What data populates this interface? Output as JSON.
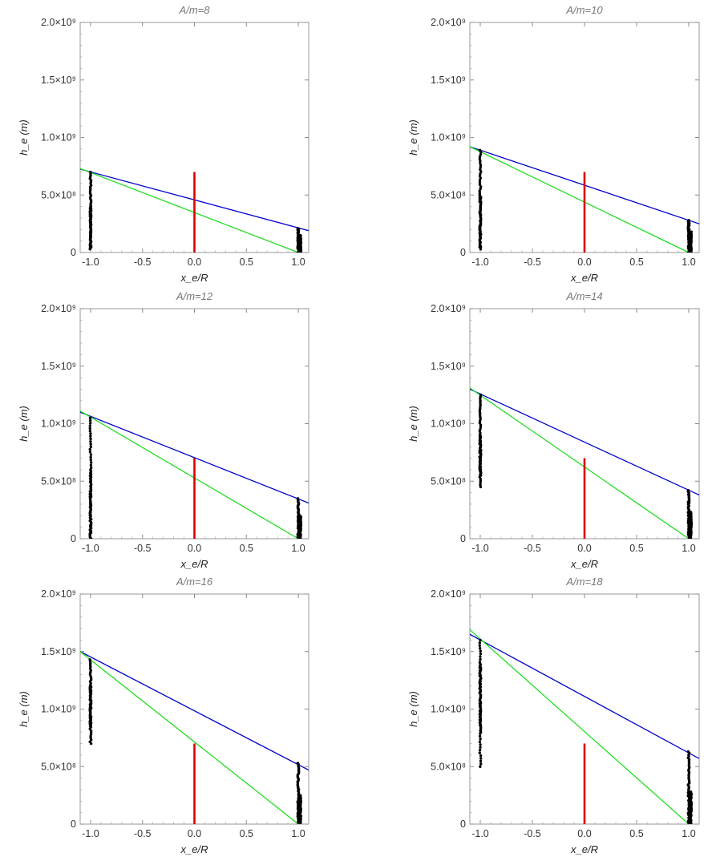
{
  "chart_data": [
    {
      "type": "scatter",
      "title": "A/m=8",
      "xlabel": "x_e/R",
      "ylabel": "h_e (m)",
      "xlim": [
        -1.1,
        1.1
      ],
      "ylim": [
        0,
        2000000000
      ],
      "xticks": [
        "-1.0",
        "-0.5",
        "0.0",
        "0.5",
        "1.0"
      ],
      "yticks": [
        "0",
        "5.0×10⁸",
        "1.0×10⁹",
        "1.5×10⁹",
        "2.0×10⁹"
      ],
      "grid": false,
      "series": [
        {
          "color": "#0000cc",
          "kind": "line",
          "x": [
            -1.1,
            1.1
          ],
          "y": [
            725000000,
            190000000
          ]
        },
        {
          "color": "#22dd22",
          "kind": "line",
          "x": [
            -1.1,
            1.0
          ],
          "y": [
            730000000,
            0
          ]
        },
        {
          "color": "#dd0000",
          "kind": "segment",
          "x": [
            0.0,
            0.0
          ],
          "y": [
            0,
            700000000
          ]
        },
        {
          "color": "#000000",
          "kind": "points",
          "x": [
            -1.0,
            -1.0,
            1.0,
            1.02
          ],
          "y_ranges": [
            [
              30000000,
              700000000
            ],
            [
              50000000,
              400000000
            ],
            [
              0,
              210000000
            ],
            [
              0,
              150000000
            ]
          ]
        }
      ]
    },
    {
      "type": "scatter",
      "title": "A/m=10",
      "xlabel": "x_e/R",
      "ylabel": "h_e (m)",
      "xlim": [
        -1.1,
        1.1
      ],
      "ylim": [
        0,
        2000000000
      ],
      "xticks": [
        "-1.0",
        "-0.5",
        "0.0",
        "0.5",
        "1.0"
      ],
      "yticks": [
        "0",
        "5.0×10⁸",
        "1.0×10⁹",
        "1.5×10⁹",
        "2.0×10⁹"
      ],
      "grid": false,
      "series": [
        {
          "color": "#0000cc",
          "kind": "line",
          "x": [
            -1.1,
            1.1
          ],
          "y": [
            920000000,
            250000000
          ]
        },
        {
          "color": "#22dd22",
          "kind": "line",
          "x": [
            -1.1,
            1.0
          ],
          "y": [
            920000000,
            0
          ]
        },
        {
          "color": "#dd0000",
          "kind": "segment",
          "x": [
            0.0,
            0.0
          ],
          "y": [
            0,
            700000000
          ]
        },
        {
          "color": "#000000",
          "kind": "points",
          "x": [
            -1.0,
            -1.0,
            1.0,
            1.02
          ],
          "y_ranges": [
            [
              30000000,
              890000000
            ],
            [
              50000000,
              500000000
            ],
            [
              0,
              280000000
            ],
            [
              0,
              180000000
            ]
          ]
        }
      ]
    },
    {
      "type": "scatter",
      "title": "A/m=12",
      "xlabel": "x_e/R",
      "ylabel": "h_e (m)",
      "xlim": [
        -1.1,
        1.1
      ],
      "ylim": [
        0,
        2000000000
      ],
      "xticks": [
        "-1.0",
        "-0.5",
        "0.0",
        "0.5",
        "1.0"
      ],
      "yticks": [
        "0",
        "5.0×10⁸",
        "1.0×10⁹",
        "1.5×10⁹",
        "2.0×10⁹"
      ],
      "grid": false,
      "series": [
        {
          "color": "#0000cc",
          "kind": "line",
          "x": [
            -1.1,
            1.1
          ],
          "y": [
            1100000000,
            310000000
          ]
        },
        {
          "color": "#22dd22",
          "kind": "line",
          "x": [
            -1.1,
            1.0
          ],
          "y": [
            1110000000,
            0
          ]
        },
        {
          "color": "#dd0000",
          "kind": "segment",
          "x": [
            0.0,
            0.0
          ],
          "y": [
            0,
            700000000
          ]
        },
        {
          "color": "#000000",
          "kind": "points",
          "x": [
            -1.0,
            -1.0,
            1.0,
            1.02
          ],
          "y_ranges": [
            [
              0,
              1050000000
            ],
            [
              0,
              600000000
            ],
            [
              0,
              350000000
            ],
            [
              0,
              200000000
            ]
          ]
        }
      ]
    },
    {
      "type": "scatter",
      "title": "A/m=14",
      "xlabel": "x_e/R",
      "ylabel": "h_e (m)",
      "xlim": [
        -1.1,
        1.1
      ],
      "ylim": [
        0,
        2000000000
      ],
      "xticks": [
        "-1.0",
        "-0.5",
        "0.0",
        "0.5",
        "1.0"
      ],
      "yticks": [
        "0",
        "5.0×10⁸",
        "1.0×10⁹",
        "1.5×10⁹",
        "2.0×10⁹"
      ],
      "grid": false,
      "series": [
        {
          "color": "#0000cc",
          "kind": "line",
          "x": [
            -1.1,
            1.1
          ],
          "y": [
            1300000000,
            380000000
          ]
        },
        {
          "color": "#22dd22",
          "kind": "line",
          "x": [
            -1.1,
            1.0
          ],
          "y": [
            1310000000,
            0
          ]
        },
        {
          "color": "#dd0000",
          "kind": "segment",
          "x": [
            0.0,
            0.0
          ],
          "y": [
            0,
            700000000
          ]
        },
        {
          "color": "#000000",
          "kind": "points",
          "x": [
            -1.0,
            -1.0,
            1.0,
            1.02
          ],
          "y_ranges": [
            [
              450000000,
              1250000000
            ],
            [
              550000000,
              900000000
            ],
            [
              0,
              420000000
            ],
            [
              0,
              230000000
            ]
          ]
        }
      ]
    },
    {
      "type": "scatter",
      "title": "A/m=16",
      "xlabel": "x_e/R",
      "ylabel": "h_e (m)",
      "xlim": [
        -1.1,
        1.1
      ],
      "ylim": [
        0,
        2000000000
      ],
      "xticks": [
        "-1.0",
        "-0.5",
        "0.0",
        "0.5",
        "1.0"
      ],
      "yticks": [
        "0",
        "5.0×10⁸",
        "1.0×10⁹",
        "1.5×10⁹",
        "2.0×10⁹"
      ],
      "grid": false,
      "series": [
        {
          "color": "#0000cc",
          "kind": "line",
          "x": [
            -1.1,
            1.1
          ],
          "y": [
            1500000000,
            470000000
          ]
        },
        {
          "color": "#22dd22",
          "kind": "line",
          "x": [
            -1.1,
            1.0
          ],
          "y": [
            1500000000,
            0
          ]
        },
        {
          "color": "#dd0000",
          "kind": "segment",
          "x": [
            0.0,
            0.0
          ],
          "y": [
            0,
            700000000
          ]
        },
        {
          "color": "#000000",
          "kind": "points",
          "x": [
            -1.0,
            -1.0,
            1.0,
            1.02
          ],
          "y_ranges": [
            [
              700000000,
              1430000000
            ],
            [
              850000000,
              1200000000
            ],
            [
              0,
              530000000
            ],
            [
              0,
              250000000
            ]
          ]
        }
      ]
    },
    {
      "type": "scatter",
      "title": "A/m=18",
      "xlabel": "x_e/R",
      "ylabel": "h_e (m)",
      "xlim": [
        -1.1,
        1.1
      ],
      "ylim": [
        0,
        2000000000
      ],
      "xticks": [
        "-1.0",
        "-0.5",
        "0.0",
        "0.5",
        "1.0"
      ],
      "yticks": [
        "0",
        "5.0×10⁸",
        "1.0×10⁹",
        "1.5×10⁹",
        "2.0×10⁹"
      ],
      "grid": false,
      "series": [
        {
          "color": "#0000cc",
          "kind": "line",
          "x": [
            -1.1,
            1.1
          ],
          "y": [
            1650000000,
            570000000
          ]
        },
        {
          "color": "#22dd22",
          "kind": "line",
          "x": [
            -1.1,
            1.0
          ],
          "y": [
            1690000000,
            0
          ]
        },
        {
          "color": "#dd0000",
          "kind": "segment",
          "x": [
            0.0,
            0.0
          ],
          "y": [
            0,
            700000000
          ]
        },
        {
          "color": "#000000",
          "kind": "points",
          "x": [
            -1.0,
            -1.0,
            1.0,
            1.02
          ],
          "y_ranges": [
            [
              500000000,
              1600000000
            ],
            [
              800000000,
              1400000000
            ],
            [
              0,
              630000000
            ],
            [
              0,
              280000000
            ]
          ]
        }
      ]
    }
  ]
}
